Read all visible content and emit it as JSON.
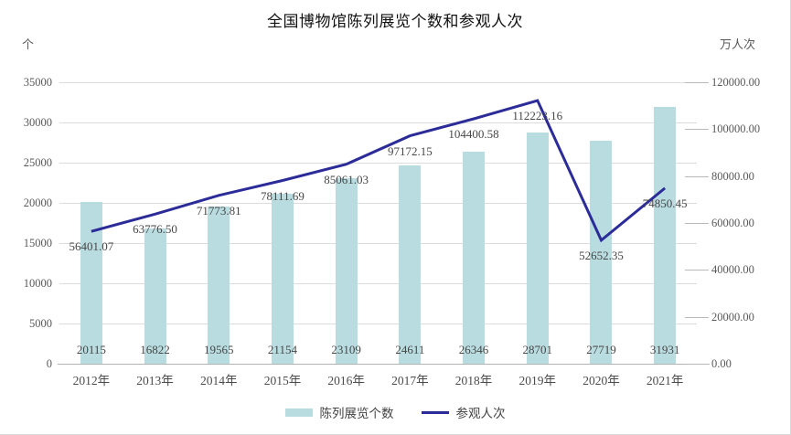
{
  "title": "全国博物馆陈列展览个数和参观人次",
  "axes": {
    "left_unit": "个",
    "right_unit": "万人次",
    "left_ticks": [
      "0",
      "5000",
      "10000",
      "15000",
      "20000",
      "25000",
      "30000",
      "35000"
    ],
    "right_ticks": [
      "0.00",
      "20000.00",
      "40000.00",
      "60000.00",
      "80000.00",
      "100000.00",
      "120000.00"
    ]
  },
  "legend": {
    "items": [
      {
        "label": "陈列展览个数",
        "marker": "bar"
      },
      {
        "label": "参观人次",
        "marker": "line"
      }
    ]
  },
  "colors": {
    "bar": "#b8dce0",
    "line": "#2c2c99",
    "grid": "#dcdcdc",
    "axis": "#b3b3b3",
    "tick_text": "#595959",
    "label_text": "#464646",
    "title_text": "#111111"
  },
  "chart_data": {
    "type": "bar",
    "title": "全国博物馆陈列展览个数和参观人次",
    "categories": [
      "2012年",
      "2013年",
      "2014年",
      "2015年",
      "2016年",
      "2017年",
      "2018年",
      "2019年",
      "2020年",
      "2021年"
    ],
    "series": [
      {
        "name": "陈列展览个数",
        "chart_type": "bar",
        "axis": "left",
        "values": [
          20115,
          16822,
          19565,
          21154,
          23109,
          24611,
          26346,
          28701,
          27719,
          31931
        ],
        "labels": [
          "20115",
          "16822",
          "19565",
          "21154",
          "23109",
          "24611",
          "26346",
          "28701",
          "27719",
          "31931"
        ]
      },
      {
        "name": "参观人次",
        "chart_type": "line",
        "axis": "right",
        "values": [
          56401.07,
          63776.5,
          71773.81,
          78111.69,
          85061.03,
          97172.15,
          104400.58,
          112223.16,
          52652.35,
          74850.45
        ],
        "labels": [
          "56401.07",
          "63776.50",
          "71773.81",
          "78111.69",
          "85061.03",
          "97172.15",
          "104400.58",
          "112223.16",
          "52652.35",
          "74850.45"
        ]
      }
    ],
    "ylabel_left": "个",
    "ylabel_right": "万人次",
    "ylim_left": [
      0,
      35000
    ],
    "ylim_right": [
      0,
      120000
    ],
    "ytick_step_left": 5000,
    "ytick_step_right": 20000,
    "grid": true,
    "legend_position": "bottom"
  }
}
